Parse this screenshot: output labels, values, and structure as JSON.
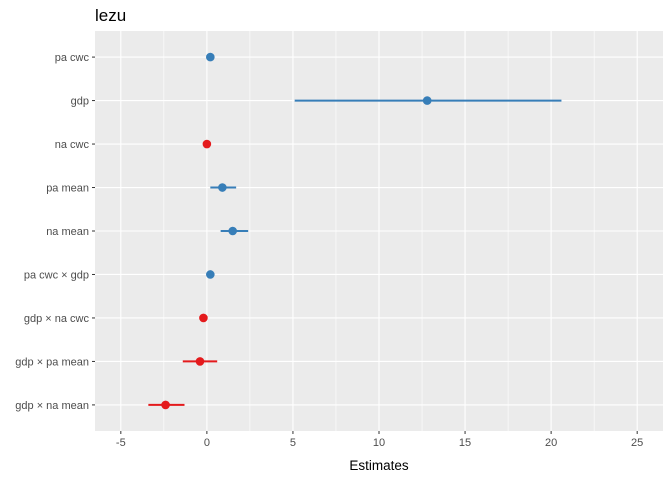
{
  "chart_data": {
    "type": "scatter",
    "title": "lezu",
    "xlabel": "Estimates",
    "ylabel": "",
    "xlim": [
      -6.5,
      26.5
    ],
    "x_ticks": [
      -5,
      0,
      5,
      10,
      15,
      20,
      25
    ],
    "x_tick_labels": [
      "-5",
      "0",
      "5",
      "10",
      "15",
      "20",
      "25"
    ],
    "grid": true,
    "legend": "none",
    "colors": {
      "positive": "#377eb8",
      "negative": "#e41a1c",
      "panel": "#ebebeb",
      "grid": "#ffffff"
    },
    "terms": [
      {
        "label": "pa cwc",
        "estimate": 0.2,
        "conf_low": 0.2,
        "conf_high": 0.2,
        "color": "#377eb8"
      },
      {
        "label": "gdp",
        "estimate": 12.8,
        "conf_low": 5.1,
        "conf_high": 20.6,
        "color": "#377eb8"
      },
      {
        "label": "na cwc",
        "estimate": 0.0,
        "conf_low": 0.0,
        "conf_high": 0.0,
        "color": "#e41a1c"
      },
      {
        "label": "pa mean",
        "estimate": 0.9,
        "conf_low": 0.2,
        "conf_high": 1.7,
        "color": "#377eb8"
      },
      {
        "label": "na mean",
        "estimate": 1.5,
        "conf_low": 0.8,
        "conf_high": 2.4,
        "color": "#377eb8"
      },
      {
        "label": "pa cwc × gdp",
        "estimate": 0.2,
        "conf_low": 0.2,
        "conf_high": 0.2,
        "color": "#377eb8"
      },
      {
        "label": "gdp × na cwc",
        "estimate": -0.2,
        "conf_low": -0.2,
        "conf_high": -0.2,
        "color": "#e41a1c"
      },
      {
        "label": "gdp × pa mean",
        "estimate": -0.4,
        "conf_low": -1.4,
        "conf_high": 0.6,
        "color": "#e41a1c"
      },
      {
        "label": "gdp × na mean",
        "estimate": -2.4,
        "conf_low": -3.4,
        "conf_high": -1.3,
        "color": "#e41a1c"
      }
    ]
  }
}
